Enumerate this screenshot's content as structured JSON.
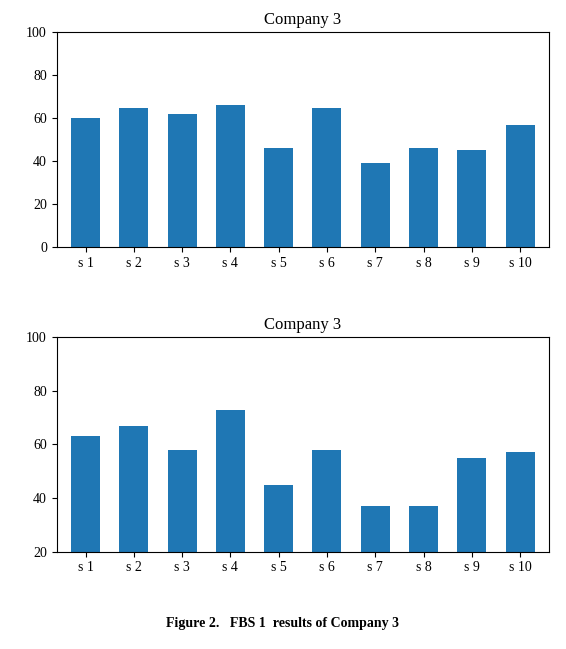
{
  "chart_data": [
    {
      "type": "bar",
      "title": "Company 3",
      "categories": [
        "s 1",
        "s 2",
        "s 3",
        "s 4",
        "s 5",
        "s 6",
        "s 7",
        "s 8",
        "s 9",
        "s 10"
      ],
      "values": [
        60,
        65,
        62,
        66,
        46,
        65,
        39,
        46,
        45,
        57
      ],
      "ylim": [
        0,
        100
      ],
      "yticks": [
        0,
        20,
        40,
        60,
        80,
        100
      ]
    },
    {
      "type": "bar",
      "title": "Company 3",
      "categories": [
        "s 1",
        "s 2",
        "s 3",
        "s 4",
        "s 5",
        "s 6",
        "s 7",
        "s 8",
        "s 9",
        "s 10"
      ],
      "values": [
        63,
        67,
        58,
        73,
        45,
        58,
        37,
        37,
        55,
        57
      ],
      "ylim": [
        20,
        100
      ],
      "yticks": [
        20,
        40,
        60,
        80,
        100
      ],
      "annotation": "Figure 2.   FBS 1  results of Company 3"
    }
  ]
}
